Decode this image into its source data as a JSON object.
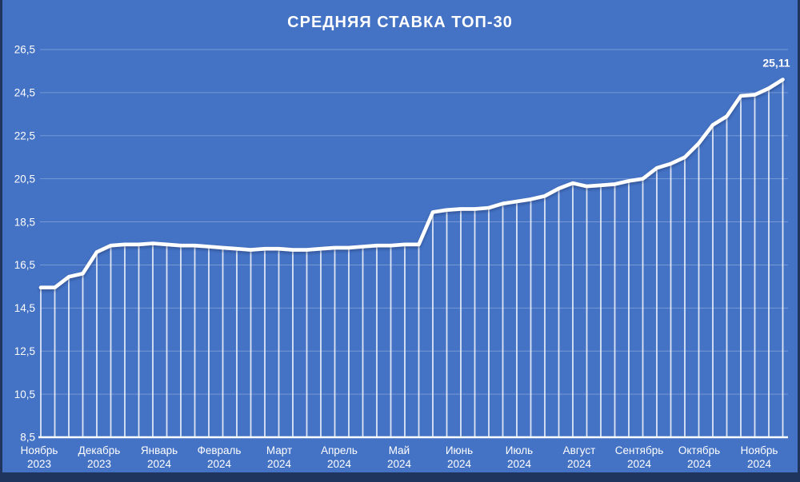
{
  "window": {
    "frame_color": "#20355e"
  },
  "colors": {
    "background": "#4472c4",
    "line": "#ffffff",
    "text": "#ffffff",
    "shadow": "#1a2c4e"
  },
  "chart_data": {
    "type": "line",
    "title": "СРЕДНЯЯ СТАВКА ТОП-30",
    "legend": "none",
    "grid": "horizontal",
    "drop_lines": true,
    "y_axis": {
      "min": 8.5,
      "max": 26.5,
      "step": 2,
      "tick_labels": [
        "8,5",
        "10,5",
        "12,5",
        "14,5",
        "16,5",
        "18,5",
        "20,5",
        "22,5",
        "24,5",
        "26,5"
      ]
    },
    "x_axis": {
      "unit": "week",
      "labels": [
        {
          "month": "Ноябрь",
          "year": "2023"
        },
        {
          "month": "Декабрь",
          "year": "2023"
        },
        {
          "month": "Январь",
          "year": "2024"
        },
        {
          "month": "Февраль",
          "year": "2024"
        },
        {
          "month": "Март",
          "year": "2024"
        },
        {
          "month": "Апрель",
          "year": "2024"
        },
        {
          "month": "Май",
          "year": "2024"
        },
        {
          "month": "Июнь",
          "year": "2024"
        },
        {
          "month": "Июль",
          "year": "2024"
        },
        {
          "month": "Август",
          "year": "2024"
        },
        {
          "month": "Сентябрь",
          "year": "2024"
        },
        {
          "month": "Октябрь",
          "year": "2024"
        },
        {
          "month": "Ноябрь",
          "year": "2024"
        }
      ]
    },
    "values": [
      15.45,
      15.45,
      15.95,
      16.1,
      17.1,
      17.4,
      17.45,
      17.45,
      17.5,
      17.45,
      17.4,
      17.4,
      17.35,
      17.3,
      17.25,
      17.2,
      17.25,
      17.25,
      17.2,
      17.2,
      17.25,
      17.3,
      17.3,
      17.35,
      17.4,
      17.4,
      17.45,
      17.45,
      18.95,
      19.05,
      19.1,
      19.1,
      19.15,
      19.35,
      19.45,
      19.55,
      19.7,
      20.05,
      20.3,
      20.15,
      20.2,
      20.25,
      20.4,
      20.5,
      21.0,
      21.2,
      21.5,
      22.15,
      23.0,
      23.4,
      24.35,
      24.4,
      24.7,
      25.11
    ],
    "last_value_label": "25,11"
  }
}
